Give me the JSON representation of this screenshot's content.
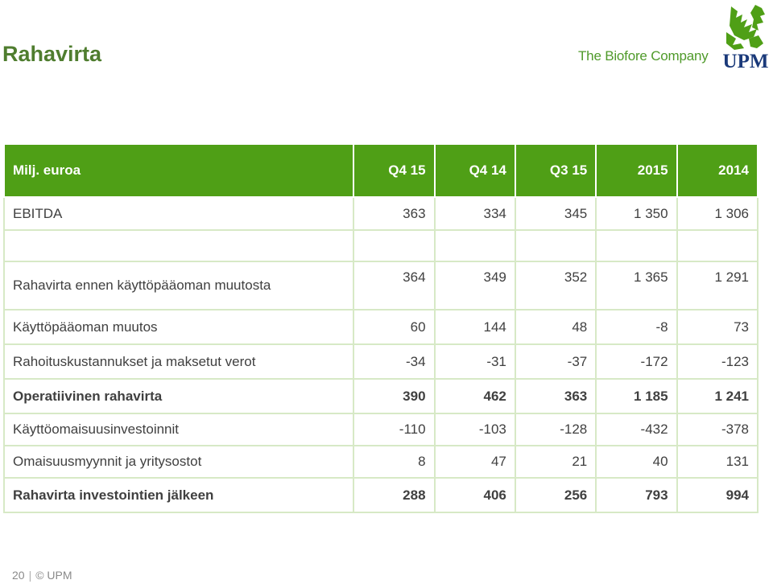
{
  "page": {
    "title": "Rahavirta"
  },
  "brand": {
    "tagline": "The Biofore Company",
    "logo_text": "UPM",
    "colors": {
      "green": "#4f9f16",
      "title_green": "#4f7d2f",
      "blue": "#1b3a7a",
      "row_border": "#d7e9c6"
    }
  },
  "table": {
    "header": [
      "Milj. euroa",
      "Q4 15",
      "Q4 14",
      "Q3 15",
      "2015",
      "2014"
    ],
    "rows": [
      {
        "label": "EBITDA",
        "values": [
          "363",
          "334",
          "345",
          "1 350",
          "1 306"
        ],
        "bold": false
      },
      {
        "label": "",
        "values": [
          "",
          "",
          "",
          "",
          ""
        ],
        "bold": false
      },
      {
        "label": "Rahavirta ennen käyttöpääoman muutosta",
        "values": [
          "364",
          "349",
          "352",
          "1 365",
          "1 291"
        ],
        "bold": false
      },
      {
        "label": "Käyttöpääoman muutos",
        "values": [
          "60",
          "144",
          "48",
          "-8",
          "73"
        ],
        "bold": false
      },
      {
        "label": "Rahoituskustannukset ja maksetut verot",
        "values": [
          "-34",
          "-31",
          "-37",
          "-172",
          "-123"
        ],
        "bold": false
      },
      {
        "label": "Operatiivinen rahavirta",
        "values": [
          "390",
          "462",
          "363",
          "1 185",
          "1 241"
        ],
        "bold": true
      },
      {
        "label": "Käyttöomaisuusinvestoinnit",
        "values": [
          "-110",
          "-103",
          "-128",
          "-432",
          "-378"
        ],
        "bold": false
      },
      {
        "label": "Omaisuusmyynnit ja yritysostot",
        "values": [
          "8",
          "47",
          "21",
          "40",
          "131"
        ],
        "bold": false
      },
      {
        "label": "Rahavirta investointien jälkeen",
        "values": [
          "288",
          "406",
          "256",
          "793",
          "994"
        ],
        "bold": true
      }
    ]
  },
  "footer": {
    "page_number": "20",
    "separator": "|",
    "copyright": "© UPM"
  }
}
